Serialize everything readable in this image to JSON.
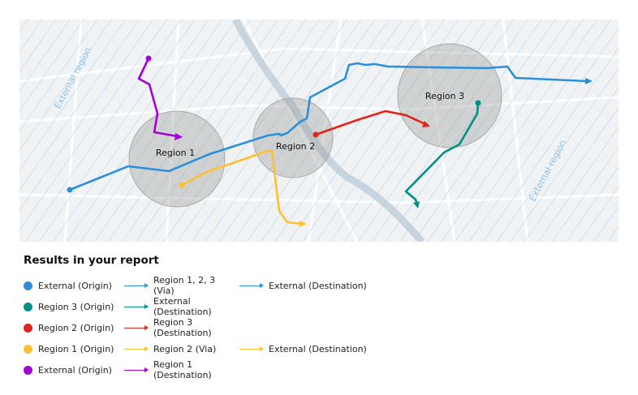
{
  "map": {
    "external_label": "External region",
    "regions": [
      "Region 1",
      "Region 2",
      "Region 3"
    ]
  },
  "legend": {
    "title": "Results in your report",
    "rows": [
      {
        "color": "#2b8fdb",
        "steps": [
          "External (Origin)",
          "Region 1, 2, 3 (Via)",
          "External (Destination)"
        ]
      },
      {
        "color": "#00908a",
        "steps": [
          "Region 3 (Origin)",
          "External (Destination)"
        ]
      },
      {
        "color": "#e2231a",
        "steps": [
          "Region 2 (Origin)",
          "Region 3 (Destination)"
        ]
      },
      {
        "color": "#fec031",
        "steps": [
          "Region 1 (Origin)",
          "Region 2 (Via)",
          "External (Destination)"
        ]
      },
      {
        "color": "#a700d6",
        "steps": [
          "External (Origin)",
          "Region 1 (Destination)"
        ]
      }
    ]
  }
}
